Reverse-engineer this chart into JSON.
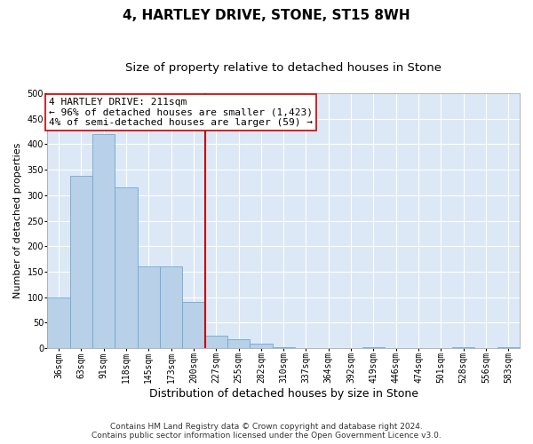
{
  "title1": "4, HARTLEY DRIVE, STONE, ST15 8WH",
  "title2": "Size of property relative to detached houses in Stone",
  "xlabel": "Distribution of detached houses by size in Stone",
  "ylabel": "Number of detached properties",
  "bin_labels": [
    "36sqm",
    "63sqm",
    "91sqm",
    "118sqm",
    "145sqm",
    "173sqm",
    "200sqm",
    "227sqm",
    "255sqm",
    "282sqm",
    "310sqm",
    "337sqm",
    "364sqm",
    "392sqm",
    "419sqm",
    "446sqm",
    "474sqm",
    "501sqm",
    "528sqm",
    "556sqm",
    "583sqm"
  ],
  "bar_heights": [
    100,
    338,
    420,
    315,
    160,
    160,
    90,
    25,
    17,
    9,
    1,
    0,
    0,
    0,
    1,
    0,
    0,
    0,
    1,
    0,
    1
  ],
  "bar_color": "#b8d0e8",
  "bar_edge_color": "#6aaad4",
  "background_color": "#dce8f5",
  "grid_color": "#ffffff",
  "vline_color": "#cc0000",
  "vline_bin_index": 7,
  "annotation_line1": "4 HARTLEY DRIVE: 211sqm",
  "annotation_line2": "← 96% of detached houses are smaller (1,423)",
  "annotation_line3": "4% of semi-detached houses are larger (59) →",
  "annotation_box_edge": "#cc0000",
  "ylim": [
    0,
    500
  ],
  "yticks": [
    0,
    50,
    100,
    150,
    200,
    250,
    300,
    350,
    400,
    450,
    500
  ],
  "footnote1": "Contains HM Land Registry data © Crown copyright and database right 2024.",
  "footnote2": "Contains public sector information licensed under the Open Government Licence v3.0.",
  "title1_fontsize": 11,
  "title2_fontsize": 9.5,
  "xlabel_fontsize": 9,
  "ylabel_fontsize": 8,
  "tick_fontsize": 7,
  "annotation_fontsize": 8,
  "footnote_fontsize": 6.5
}
